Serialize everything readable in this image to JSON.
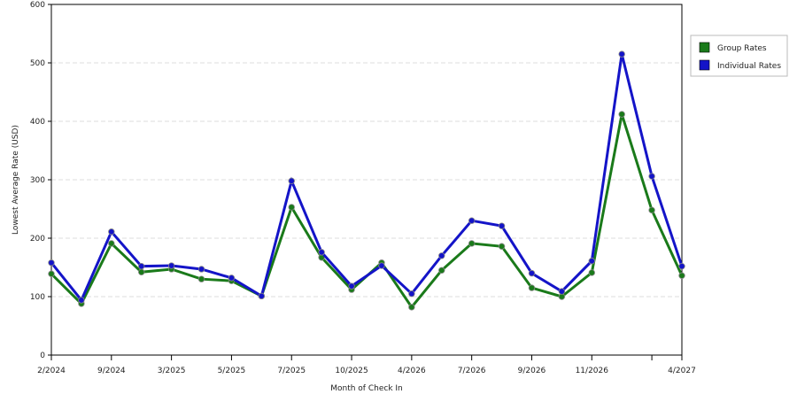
{
  "chart_data": {
    "type": "line",
    "x_label": "Month of Check In",
    "y_label": "Lowest Average Rate (USD)",
    "categories": [
      "2/2024",
      null,
      "9/2024",
      null,
      "3/2025",
      null,
      "5/2025",
      null,
      "7/2025",
      null,
      "10/2025",
      null,
      "4/2026",
      null,
      "7/2026",
      null,
      "9/2026",
      null,
      "11/2026",
      null,
      null,
      "4/2027"
    ],
    "series": [
      {
        "name": "Group Rates",
        "color": "#1a7a1a",
        "values": [
          139,
          88,
          191,
          142,
          147,
          130,
          127,
          101,
          253,
          167,
          112,
          158,
          82,
          145,
          191,
          186,
          115,
          100,
          141,
          412,
          248,
          136
        ]
      },
      {
        "name": "Individual Rates",
        "color": "#1414c8",
        "values": [
          158,
          94,
          211,
          152,
          153,
          147,
          132,
          101,
          298,
          176,
          118,
          153,
          105,
          170,
          230,
          221,
          140,
          109,
          161,
          515,
          306,
          152
        ]
      }
    ],
    "ylim": [
      0,
      600
    ],
    "yticks": [
      0,
      100,
      200,
      300,
      400,
      500,
      600
    ],
    "grid": true,
    "legend": "right"
  }
}
